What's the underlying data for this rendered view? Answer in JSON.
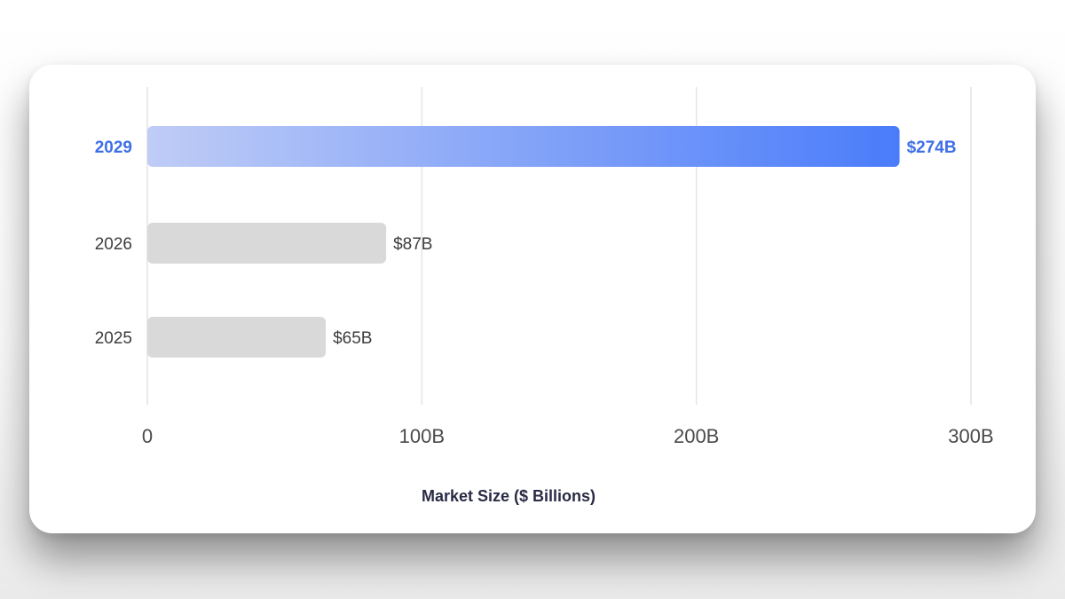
{
  "chart_data": {
    "type": "bar",
    "orientation": "horizontal",
    "categories": [
      "2029",
      "2026",
      "2025"
    ],
    "values": [
      274,
      87,
      65
    ],
    "value_labels": [
      "$274B",
      "$87B",
      "$65B"
    ],
    "highlight_category": "2029",
    "xlim": [
      0,
      300
    ],
    "x_ticks": [
      0,
      100,
      200,
      300
    ],
    "x_tick_labels": [
      "0",
      "100B",
      "200B",
      "300B"
    ],
    "xlabel": "Market Size ($ Billions)",
    "ylabel": "",
    "title": "",
    "grid": true,
    "colors": {
      "highlight_start": "#bfccf6",
      "highlight_end": "#4a7cfa",
      "highlight_text": "#3f6fe6",
      "default_bar": "#d9d9d9",
      "default_text": "#3d3d3d",
      "gridline": "#e4e4e4",
      "axis_title": "#2a2b45"
    }
  }
}
